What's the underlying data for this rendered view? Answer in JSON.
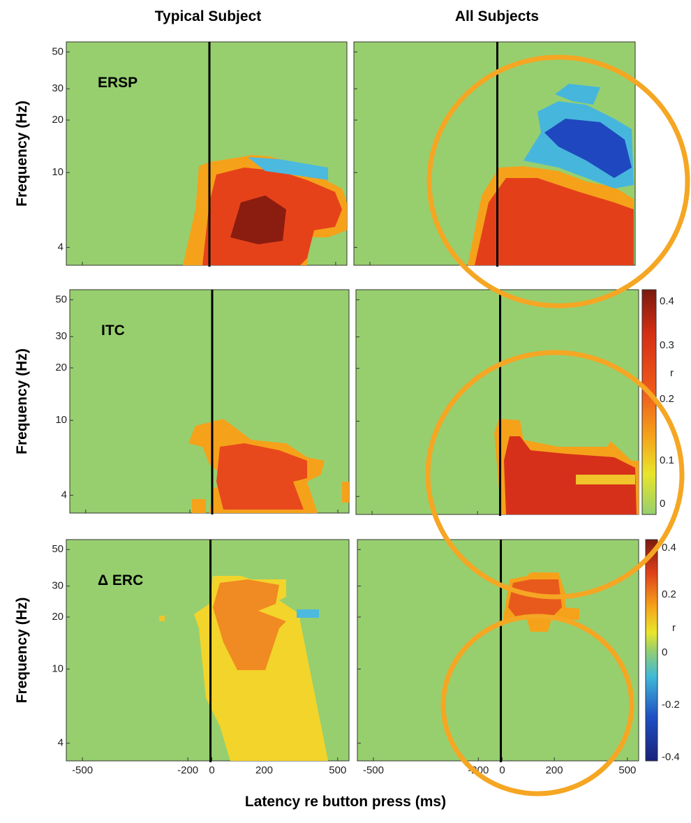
{
  "columns": [
    "Typical Subject",
    "All Subjects"
  ],
  "rows": [
    {
      "label": "ERSP",
      "y_axis": "Frequency (Hz)"
    },
    {
      "label": "ITC",
      "y_axis": "Frequency (Hz)"
    },
    {
      "label": "Δ ERC",
      "y_axis": "Frequency (Hz)"
    }
  ],
  "y_ticks": [
    50,
    30,
    20,
    10,
    4
  ],
  "x_ticks": [
    -500,
    -200,
    0,
    200,
    500
  ],
  "x_axis": "Latency re button press (ms)",
  "colorbars": [
    {
      "label": "r",
      "ticks": [
        0.4,
        0.3,
        0.2,
        0.1,
        0
      ]
    },
    {
      "label": "r",
      "ticks": [
        0.4,
        0.2,
        0,
        -0.2,
        -0.4
      ]
    }
  ]
}
